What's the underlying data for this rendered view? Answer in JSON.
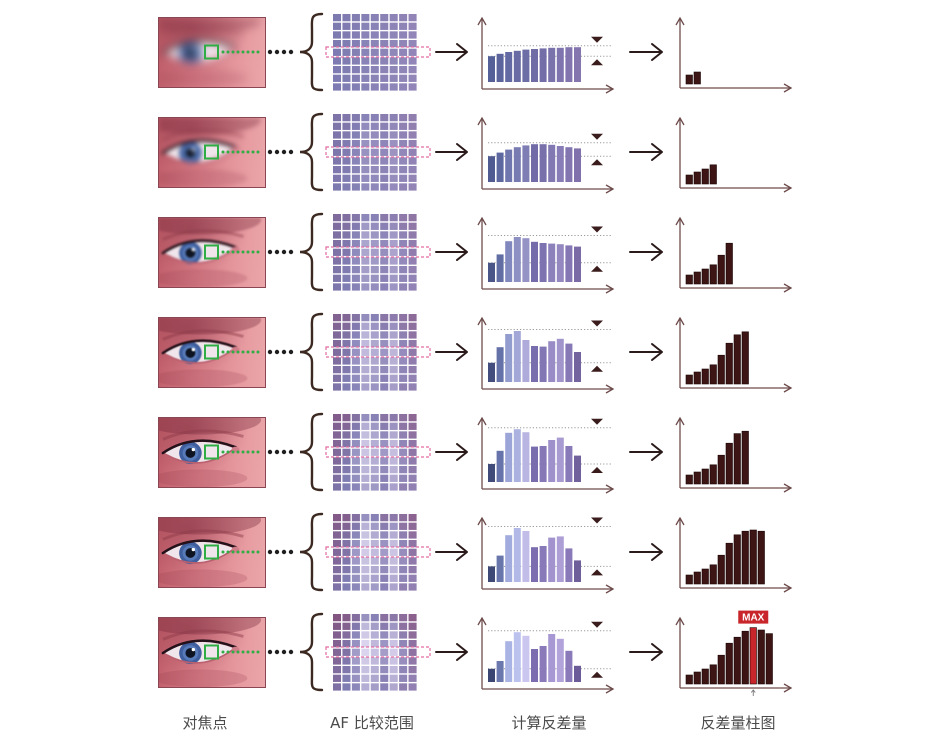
{
  "captions": {
    "focus_point": "对焦点",
    "af_range": "AF 比较范围",
    "contrast_calc": "计算反差量",
    "contrast_histogram": "反差量柱图"
  },
  "max_label": "MAX",
  "icons": {
    "connector_arrow": "right-arrow-icon",
    "bracket": "left-curly-brace-icon",
    "max_level_marker": "down-triangle-icon",
    "min_level_marker": "up-triangle-icon",
    "max_pointer": "up-arrow-icon"
  },
  "colors": {
    "focus_marker": "#2fae46",
    "connector_dots": "#1f1f1f",
    "range_box": "#e36ca2",
    "axis": "#6d4b4b",
    "histogram_bar": "#3d1515",
    "max_bar": "#c8262a",
    "contrast_palette": [
      "#3b4672",
      "#6a78ae",
      "#a9b3e4",
      "#bcc2ee",
      "#cbc6f0",
      "#7c6db0",
      "#8a7aba",
      "#a797d2",
      "#b2a4da",
      "#8a7aba",
      "#6b5b98"
    ]
  },
  "rows": [
    {
      "contrast_bars": [
        4.3,
        4.7,
        5.0,
        5.2,
        5.4,
        5.5,
        5.6,
        5.7,
        5.7,
        5.8,
        5.8
      ],
      "histogram": [
        1.5,
        2.0
      ]
    },
    {
      "contrast_bars": [
        4.3,
        4.9,
        5.4,
        5.8,
        6.1,
        6.3,
        6.3,
        6.2,
        6.0,
        5.8,
        5.6
      ],
      "histogram": [
        1.5,
        2.0,
        2.5,
        3.2
      ]
    },
    {
      "contrast_bars": [
        3.2,
        4.6,
        6.8,
        7.5,
        7.3,
        6.7,
        6.5,
        6.4,
        6.3,
        6.1,
        5.9
      ],
      "histogram": [
        1.5,
        2.0,
        2.5,
        3.2,
        4.8,
        6.8
      ]
    },
    {
      "contrast_bars": [
        3.2,
        5.8,
        8.0,
        8.5,
        7.0,
        6.0,
        5.9,
        6.8,
        7.2,
        6.4,
        5.0
      ],
      "histogram": [
        1.5,
        2.0,
        2.5,
        3.2,
        4.8,
        6.8,
        8.2,
        8.7
      ]
    },
    {
      "contrast_bars": [
        3.0,
        5.2,
        8.2,
        8.8,
        8.3,
        5.9,
        6.0,
        7.0,
        7.4,
        6.0,
        4.4
      ],
      "histogram": [
        1.5,
        2.0,
        2.5,
        3.2,
        4.8,
        6.8,
        8.4,
        8.8
      ]
    },
    {
      "contrast_bars": [
        2.6,
        4.4,
        7.8,
        9.0,
        8.5,
        5.8,
        6.0,
        7.4,
        7.6,
        5.6,
        3.6
      ],
      "histogram": [
        1.5,
        2.0,
        2.5,
        3.2,
        4.8,
        6.8,
        8.2,
        8.8,
        9.0,
        8.8
      ]
    },
    {
      "contrast_bars": [
        2.2,
        3.5,
        6.8,
        8.3,
        7.7,
        5.5,
        6.0,
        8.0,
        7.2,
        5.2,
        2.7
      ],
      "histogram": [
        1.5,
        2.0,
        2.5,
        3.2,
        4.8,
        6.8,
        7.8,
        8.8,
        9.4,
        9.0,
        8.4
      ],
      "max_index": 8
    }
  ]
}
